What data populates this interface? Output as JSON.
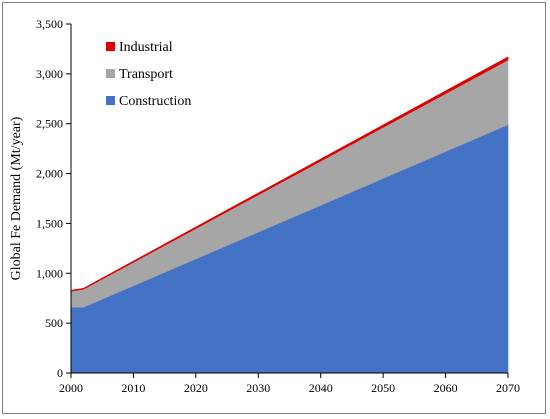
{
  "chart_data": {
    "type": "area",
    "stacked": true,
    "title": "",
    "xlabel": "",
    "ylabel": "Global Fe Demand (Mt/year)",
    "x": [
      2000,
      2002,
      2070
    ],
    "xlim": [
      2000,
      2070
    ],
    "ylim": [
      0,
      3500
    ],
    "xticks": [
      2000,
      2010,
      2020,
      2030,
      2040,
      2050,
      2060,
      2070
    ],
    "yticks": [
      0,
      500,
      1000,
      1500,
      2000,
      2500,
      3000,
      3500
    ],
    "xtick_labels": [
      "2000",
      "2010",
      "2020",
      "2030",
      "2040",
      "2050",
      "2060",
      "2070"
    ],
    "ytick_labels": [
      "0",
      "500",
      "1,000",
      "1,500",
      "2,000",
      "2,500",
      "3,000",
      "3,500"
    ],
    "grid": false,
    "legend_position": "top-left",
    "series": [
      {
        "name": "Construction",
        "color": "#4472c4",
        "values": [
          660,
          660,
          2490
        ]
      },
      {
        "name": "Transport",
        "color": "#a6a6a6",
        "values": [
          160,
          180,
          650
        ]
      },
      {
        "name": "Industrial",
        "color": "#e00000",
        "values": [
          10,
          10,
          30
        ]
      }
    ],
    "legend_order": [
      "Industrial",
      "Transport",
      "Construction"
    ]
  }
}
